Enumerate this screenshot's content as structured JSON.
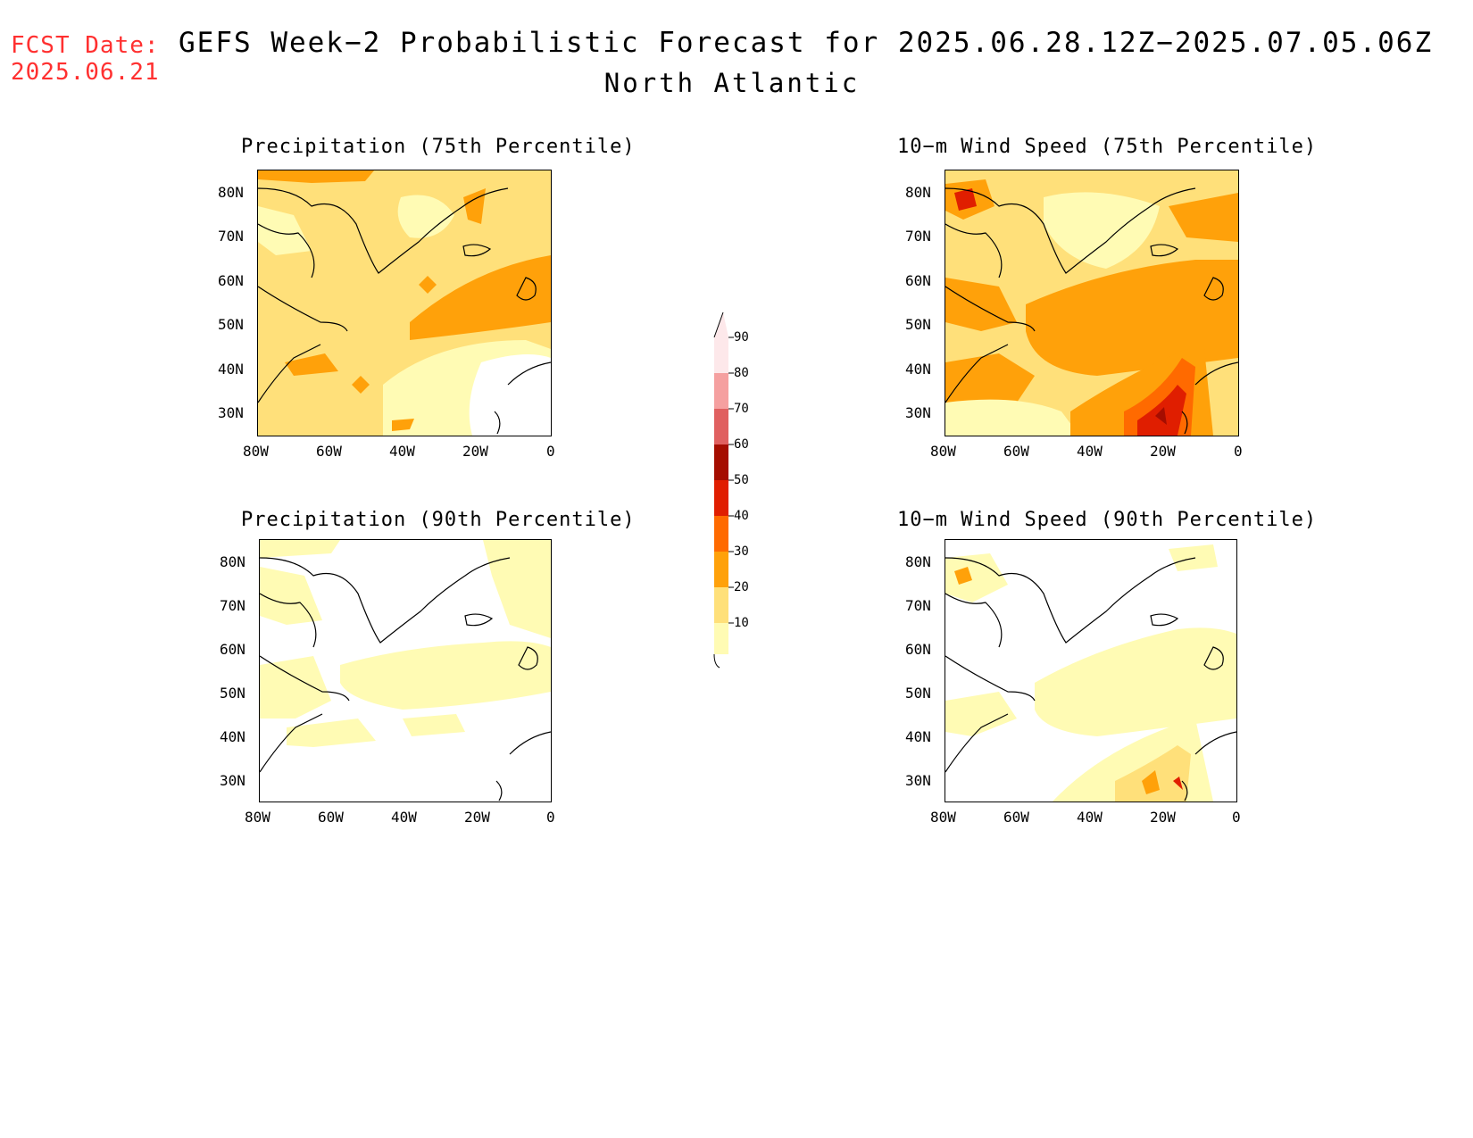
{
  "header": {
    "fcst_line1": "FCST Date:",
    "fcst_line2": "2025.06.21",
    "title": "GEFS Week−2 Probabilistic Forecast for 2025.06.28.12Z−2025.07.05.06Z",
    "subtitle": "North Atlantic"
  },
  "panels": [
    {
      "title": "Precipitation (75th Percentile)"
    },
    {
      "title": "10−m Wind Speed (75th Percentile)"
    },
    {
      "title": "Precipitation (90th Percentile)"
    },
    {
      "title": "10−m Wind Speed (90th Percentile)"
    }
  ],
  "axes": {
    "lat_labels": [
      "80N",
      "70N",
      "60N",
      "50N",
      "40N",
      "30N"
    ],
    "lon_labels": [
      "80W",
      "60W",
      "40W",
      "20W",
      "0"
    ]
  },
  "colorbar": {
    "labels": [
      "90",
      "80",
      "70",
      "60",
      "50",
      "40",
      "30",
      "20",
      "10"
    ],
    "colors": {
      "10-20": "#fffbb4",
      "20-30": "#ffe07a",
      "30-40": "#ffa10a",
      "40-50": "#ff6a00",
      "50-60": "#e01e00",
      "60-70": "#a50d00",
      "70-80": "#e06060",
      "80-90": "#f5a0a0",
      "90+": "#fde8ea"
    }
  }
}
